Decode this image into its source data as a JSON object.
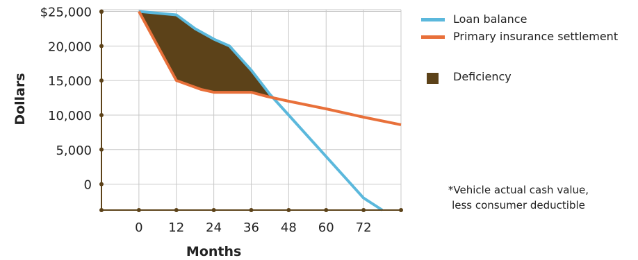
{
  "chart_data": {
    "type": "line",
    "xlabel": "Months",
    "ylabel": "Dollars",
    "x_ticks": [
      "0",
      "12",
      "24",
      "36",
      "48",
      "60",
      "72"
    ],
    "y_ticks": [
      "0",
      "5,000",
      "10,000",
      "15,000",
      "20,000",
      "$25,000"
    ],
    "y_tick_values": [
      0,
      5000,
      10000,
      15000,
      20000,
      25000
    ],
    "x_tick_values": [
      0,
      12,
      24,
      36,
      48,
      60,
      72
    ],
    "xlim": [
      -12,
      84
    ],
    "ylim": [
      -3750,
      25250
    ],
    "grid": true,
    "legend_position": "top-right",
    "series": [
      {
        "name": "Loan balance",
        "color": "#5bb8dc",
        "x": [
          0,
          12,
          18,
          24,
          29,
          36,
          42,
          48,
          54,
          60,
          66,
          72,
          78
        ],
        "y": [
          25000,
          24500,
          22500,
          21000,
          20000,
          16500,
          13000,
          10000,
          7000,
          4000,
          1000,
          -2000,
          -3750
        ]
      },
      {
        "name": "Primary insurance settlement",
        "color": "#e8703a",
        "x": [
          0,
          12,
          20,
          24,
          36,
          41,
          48,
          60,
          72,
          84
        ],
        "y": [
          25000,
          15000,
          13700,
          13300,
          13300,
          12700,
          12000,
          10900,
          9700,
          8600
        ]
      }
    ],
    "deficiency": {
      "name": "Deficiency",
      "color": "#5c4219",
      "x_range": [
        0,
        43.5
      ]
    },
    "axis_color": "#5c4219",
    "grid_color": "#c8c8c8"
  },
  "legend": {
    "items": [
      {
        "label": "Loan balance",
        "color": "#5bb8dc",
        "kind": "line"
      },
      {
        "label": "Primary insurance settlement",
        "color": "#e8703a",
        "kind": "line"
      },
      {
        "label": "Deficiency",
        "color": "#5c4219",
        "kind": "box"
      }
    ]
  },
  "footnote": {
    "line1": "*Vehicle actual cash value,",
    "line2": "less consumer deductible"
  }
}
